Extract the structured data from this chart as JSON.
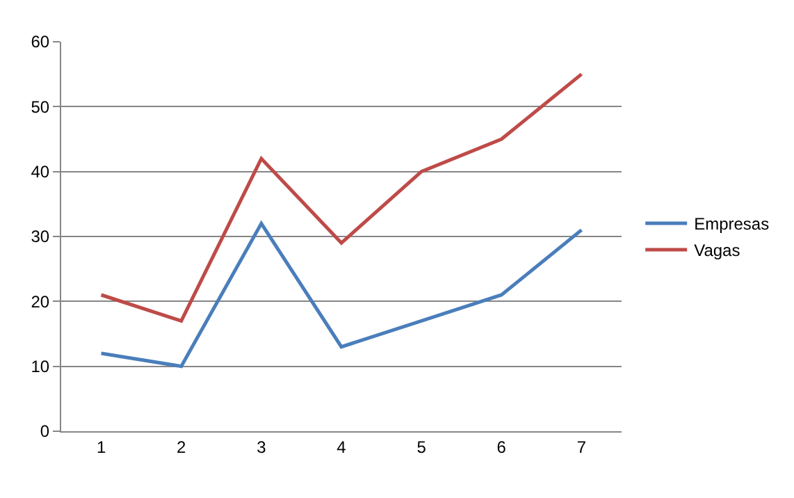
{
  "chart_data": {
    "type": "line",
    "categories": [
      "1",
      "2",
      "3",
      "4",
      "5",
      "6",
      "7"
    ],
    "series": [
      {
        "name": "Empresas",
        "color": "#4a7ebb",
        "values": [
          12,
          10,
          32,
          13,
          17,
          21,
          31
        ]
      },
      {
        "name": "Vagas",
        "color": "#be4b48",
        "values": [
          21,
          17,
          42,
          29,
          40,
          45,
          55
        ]
      }
    ],
    "ylim": [
      0,
      60
    ],
    "yticks": [
      0,
      10,
      20,
      30,
      40,
      50,
      60
    ],
    "grid": "y",
    "legend": "right",
    "marker": "none",
    "line_style": "solid"
  }
}
